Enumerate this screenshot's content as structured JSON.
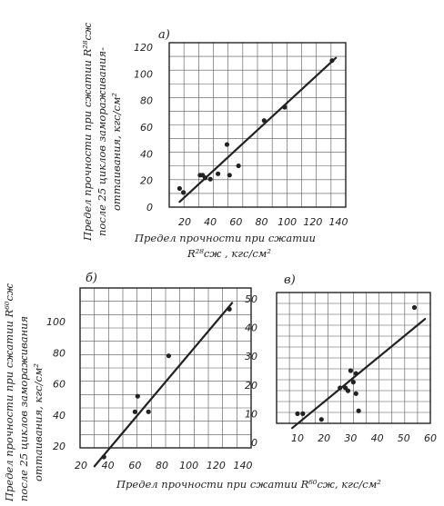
{
  "colors": {
    "ink": "#222222",
    "paper": "#ffffff"
  },
  "y_label_top": [
    "Предел прочности при сжатии R²⁸сж",
    "после 25 циклов замораживания-",
    "оттаивания, кгс/см²"
  ],
  "x_label_top": [
    "Предел прочности при сжатии",
    "R²⁸сж , кгс/см²"
  ],
  "y_label_bottom": [
    "Предел прочности при сжатии R⁶⁰сж",
    "после 25 циклов замораживания",
    "оттаивания, кгс/см²"
  ],
  "x_label_bottom": "Предел прочности при сжатии R⁶⁰сж, кгс/см²",
  "chart_data": [
    {
      "type": "scatter",
      "panel_label": "а)",
      "xticks": [
        "20",
        "40",
        "60",
        "80",
        "100",
        "120",
        "140"
      ],
      "yticks": [
        "0",
        "20",
        "40",
        "60",
        "80",
        "100",
        "120"
      ],
      "xlim": [
        0,
        140
      ],
      "ylim": [
        0,
        120
      ],
      "grid": true,
      "points": [
        [
          16,
          14
        ],
        [
          19,
          11
        ],
        [
          32,
          24
        ],
        [
          34,
          24
        ],
        [
          36,
          22
        ],
        [
          40,
          21
        ],
        [
          46,
          25
        ],
        [
          53,
          47
        ],
        [
          55,
          24
        ],
        [
          62,
          31
        ],
        [
          82,
          65
        ],
        [
          98,
          75
        ],
        [
          135,
          110
        ]
      ],
      "fit_line": [
        [
          16,
          4
        ],
        [
          138,
          112
        ]
      ]
    },
    {
      "type": "scatter",
      "panel_label": "б)",
      "xticks": [
        "20",
        "40",
        "60",
        "80",
        "100",
        "120",
        "140"
      ],
      "yticks": [
        "20",
        "40",
        "60",
        "80",
        "100"
      ],
      "xlim": [
        20,
        140
      ],
      "ylim": [
        0,
        120
      ],
      "grid": true,
      "points": [
        [
          37,
          13
        ],
        [
          60,
          42
        ],
        [
          62,
          52
        ],
        [
          70,
          42
        ],
        [
          85,
          78
        ],
        [
          130,
          108
        ]
      ],
      "fit_line": [
        [
          30,
          7
        ],
        [
          132,
          112
        ]
      ]
    },
    {
      "type": "scatter",
      "panel_label": "в)",
      "xticks": [
        "10",
        "20",
        "30",
        "40",
        "50",
        "60"
      ],
      "yticks": [
        "0",
        "10",
        "20",
        "30",
        "40",
        "50"
      ],
      "xlim": [
        0,
        60
      ],
      "ylim": [
        0,
        50
      ],
      "grid": true,
      "points": [
        [
          10,
          10
        ],
        [
          12,
          10
        ],
        [
          19,
          8
        ],
        [
          26,
          19
        ],
        [
          28,
          19
        ],
        [
          29,
          18
        ],
        [
          30,
          25
        ],
        [
          31,
          21
        ],
        [
          32,
          24
        ],
        [
          32,
          17
        ],
        [
          33,
          11
        ],
        [
          54,
          47
        ]
      ],
      "fit_line": [
        [
          8,
          5
        ],
        [
          58,
          43
        ]
      ]
    }
  ]
}
